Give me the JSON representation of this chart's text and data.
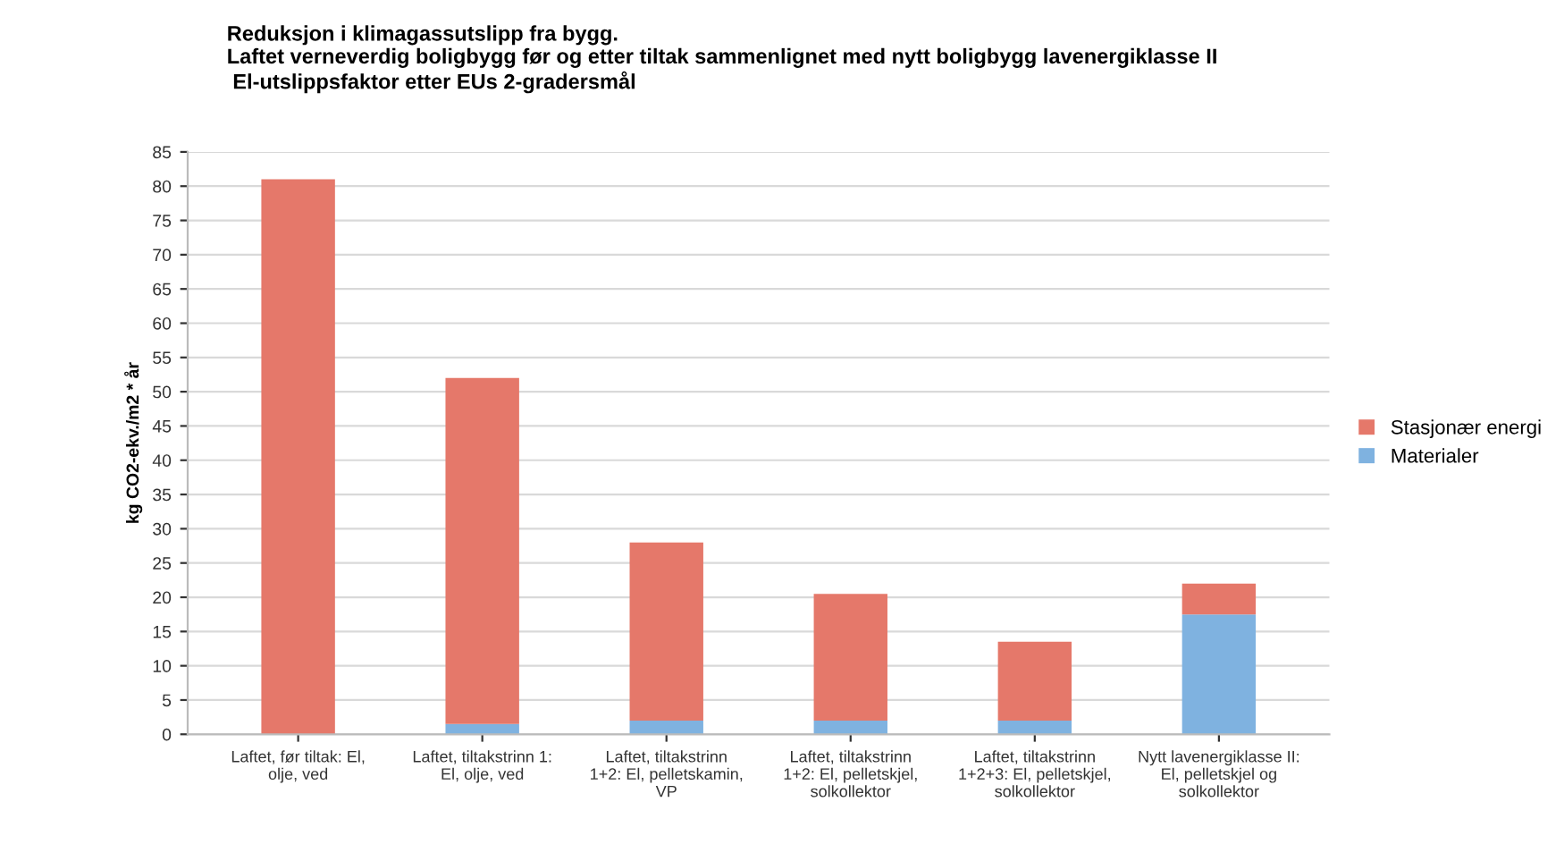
{
  "chart_data": {
    "type": "bar",
    "title": "Reduksjon i klimagassutslipp fra bygg.\nLaftet verneverdig boligbygg før og etter tiltak sammenlignet med nytt boligbygg lavenergiklasse II\n El-utslippsfaktor etter EUs 2-gradersmål",
    "ylabel": "kg CO2-ekv./m2 * år",
    "categories": [
      "Laftet, før tiltak: El,\nolje, ved",
      "Laftet, tiltakstrinn 1:\nEl, olje, ved",
      "Laftet, tiltakstrinn\n1+2: El, pelletskamin,\nVP",
      "Laftet, tiltakstrinn\n1+2: El, pelletskjel,\nsolkollektor",
      "Laftet, tiltakstrinn\n1+2+3: El, pelletskjel,\nsolkollektor",
      "Nytt lavenergiklasse II:\nEl, pelletskjel og\nsolkollektor"
    ],
    "stacked": true,
    "series": [
      {
        "name": "Materialer",
        "color": "#7fb2e0",
        "values": [
          0,
          1.5,
          2,
          2,
          2,
          17.5
        ]
      },
      {
        "name": "Stasjonær energi",
        "color": "#e5786a",
        "values": [
          81,
          50.5,
          26,
          18.5,
          11.5,
          4.5
        ]
      }
    ],
    "ylim": [
      0,
      85
    ],
    "yticks": [
      0,
      5,
      10,
      15,
      20,
      25,
      30,
      35,
      40,
      45,
      50,
      55,
      60,
      65,
      70,
      75,
      80,
      85
    ],
    "grid": "y",
    "legend": "right"
  }
}
